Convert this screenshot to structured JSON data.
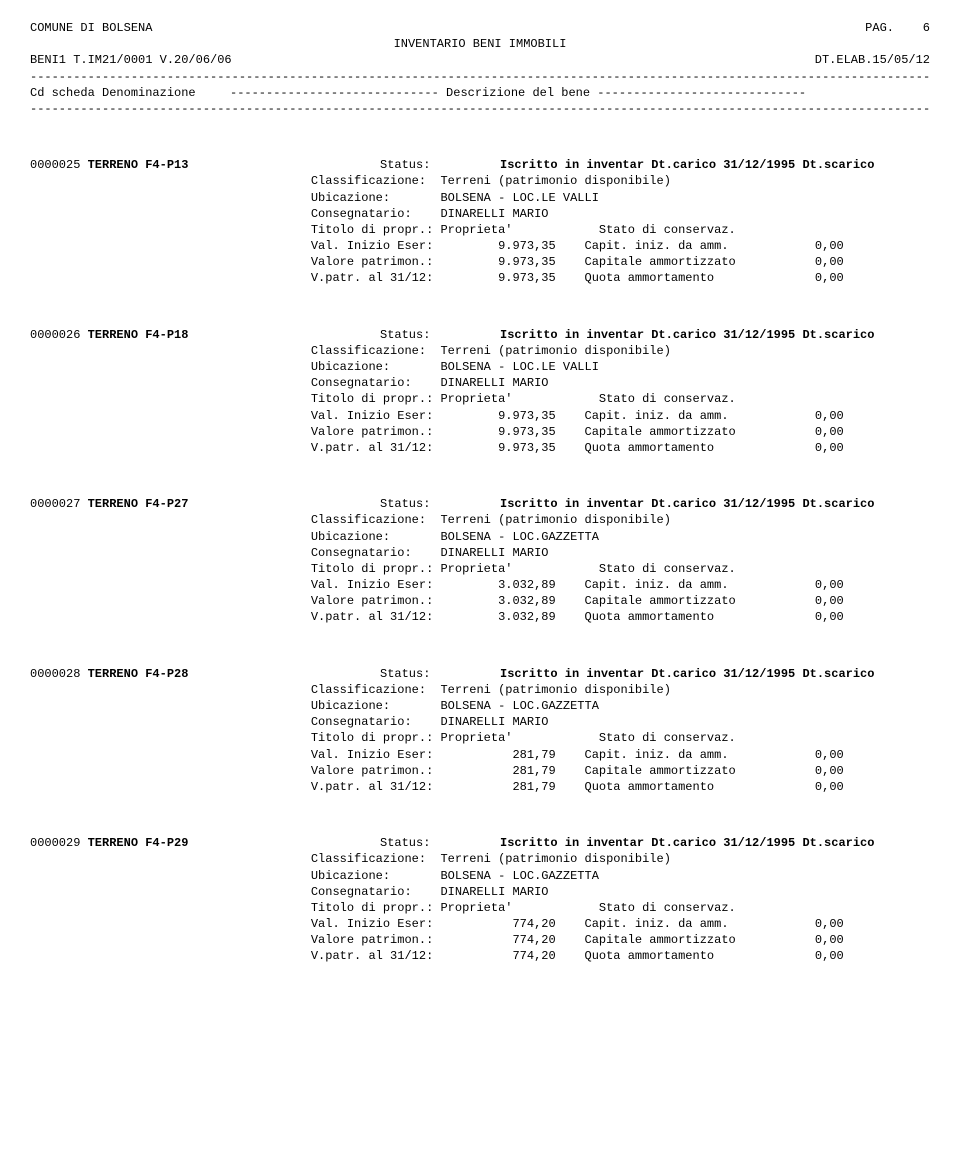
{
  "header": {
    "org": "COMUNE DI BOLSENA",
    "page_label": "PAG.",
    "page_num": "6",
    "title": "INVENTARIO BENI IMMOBILI",
    "left2": "BENI1 T.IM21/0001 V.20/06/06",
    "right2": "DT.ELAB.15/05/12",
    "desc_left": "Cd scheda Denominazione",
    "desc_mid": "----------------------------- Descrizione del bene -----------------------------"
  },
  "labels": {
    "status": "Status:",
    "classificazione": "Classificazione:",
    "ubicazione": "Ubicazione:",
    "consegnatario": "Consegnatario:",
    "titolo": "Titolo di propr.:",
    "val_inizio": "Val. Inizio Eser:",
    "val_patrimon": "Valore patrimon.:",
    "vpatr3112": "V.patr. al 31/12:",
    "capit_iniz": "Capit. iniz. da amm.",
    "cap_ammort": "Capitale ammortizzato",
    "quota_ammort": "Quota ammortamento",
    "stato_conservaz": "Stato di conservaz."
  },
  "common": {
    "status_val": "Iscritto in inventar Dt.carico 31/12/1995 Dt.scarico",
    "classif_val": "Terreni (patrimonio disponibile)",
    "consegnatario_val": "DINARELLI MARIO",
    "titolo_val": "Proprieta'",
    "zero": "0,00"
  },
  "records": [
    {
      "code": "0000025",
      "name": "TERRENO F4-P13",
      "ubicazione": "BOLSENA - LOC.LE VALLI",
      "v1": "9.973,35",
      "v2": "9.973,35",
      "v3": "9.973,35"
    },
    {
      "code": "0000026",
      "name": "TERRENO F4-P18",
      "ubicazione": "BOLSENA - LOC.LE VALLI",
      "v1": "9.973,35",
      "v2": "9.973,35",
      "v3": "9.973,35"
    },
    {
      "code": "0000027",
      "name": "TERRENO F4-P27",
      "ubicazione": "BOLSENA - LOC.GAZZETTA",
      "v1": "3.032,89",
      "v2": "3.032,89",
      "v3": "3.032,89"
    },
    {
      "code": "0000028",
      "name": "TERRENO F4-P28",
      "ubicazione": "BOLSENA - LOC.GAZZETTA",
      "v1": "281,79",
      "v2": "281,79",
      "v3": "281,79"
    },
    {
      "code": "0000029",
      "name": "TERRENO F4-P29",
      "ubicazione": "BOLSENA - LOC.GAZZETTA",
      "v1": "774,20",
      "v2": "774,20",
      "v3": "774,20"
    }
  ]
}
